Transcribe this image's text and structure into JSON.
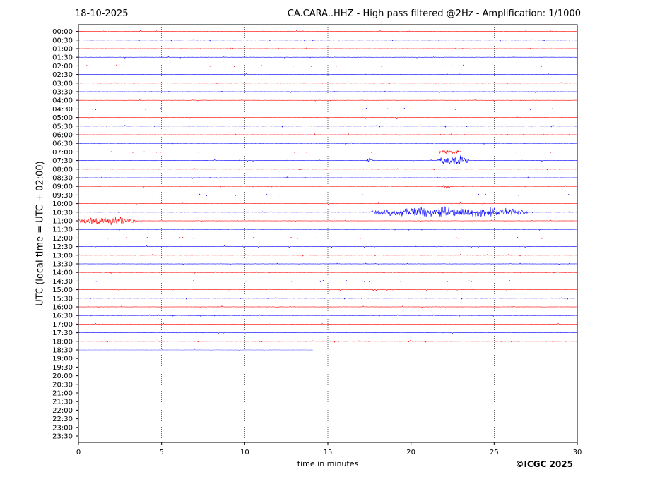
{
  "header": {
    "date": "18-10-2025",
    "title": "CA.CARA..HHZ - High pass filtered @2Hz - Amplification: 1/1000"
  },
  "footer": {
    "credit": "©ICGC 2025"
  },
  "chart_data": {
    "type": "line",
    "title": "CA.CARA..HHZ - High pass filtered @2Hz - Amplification: 1/1000",
    "xlabel": "time in minutes",
    "ylabel": "UTC (local time = UTC + 02:00)",
    "xlim": [
      0,
      30
    ],
    "xticks": [
      "0",
      "5",
      "10",
      "15",
      "20",
      "25",
      "30"
    ],
    "yticks": [
      "00:00",
      "00:30",
      "01:00",
      "01:30",
      "02:00",
      "02:30",
      "03:00",
      "03:30",
      "04:00",
      "04:30",
      "05:00",
      "05:30",
      "06:00",
      "06:30",
      "07:00",
      "07:30",
      "08:00",
      "08:30",
      "09:00",
      "09:30",
      "10:00",
      "10:30",
      "11:00",
      "11:30",
      "12:00",
      "12:30",
      "13:00",
      "13:30",
      "14:00",
      "14:30",
      "15:00",
      "15:30",
      "16:00",
      "16:30",
      "17:00",
      "17:30",
      "18:00",
      "18:30",
      "19:00",
      "19:30",
      "20:00",
      "20:30",
      "21:00",
      "21:30",
      "22:00",
      "22:30",
      "23:00",
      "23:30"
    ],
    "trace_colors": [
      "#ff0000",
      "#0000ff"
    ],
    "recorded_rows": 38,
    "last_row_end_minute": 14.1,
    "events": [
      {
        "row": "07:00",
        "start": 21.7,
        "end": 23.0,
        "amplitude": 0.35
      },
      {
        "row": "07:30",
        "start": 17.3,
        "end": 17.7,
        "amplitude": 0.3
      },
      {
        "row": "07:30",
        "start": 21.6,
        "end": 23.5,
        "amplitude": 0.9
      },
      {
        "row": "09:00",
        "start": 21.8,
        "end": 22.5,
        "amplitude": 0.35
      },
      {
        "row": "10:30",
        "start": 17.5,
        "end": 27.0,
        "amplitude": 0.9
      },
      {
        "row": "11:00",
        "start": 0.0,
        "end": 3.5,
        "amplitude": 0.7
      }
    ]
  }
}
